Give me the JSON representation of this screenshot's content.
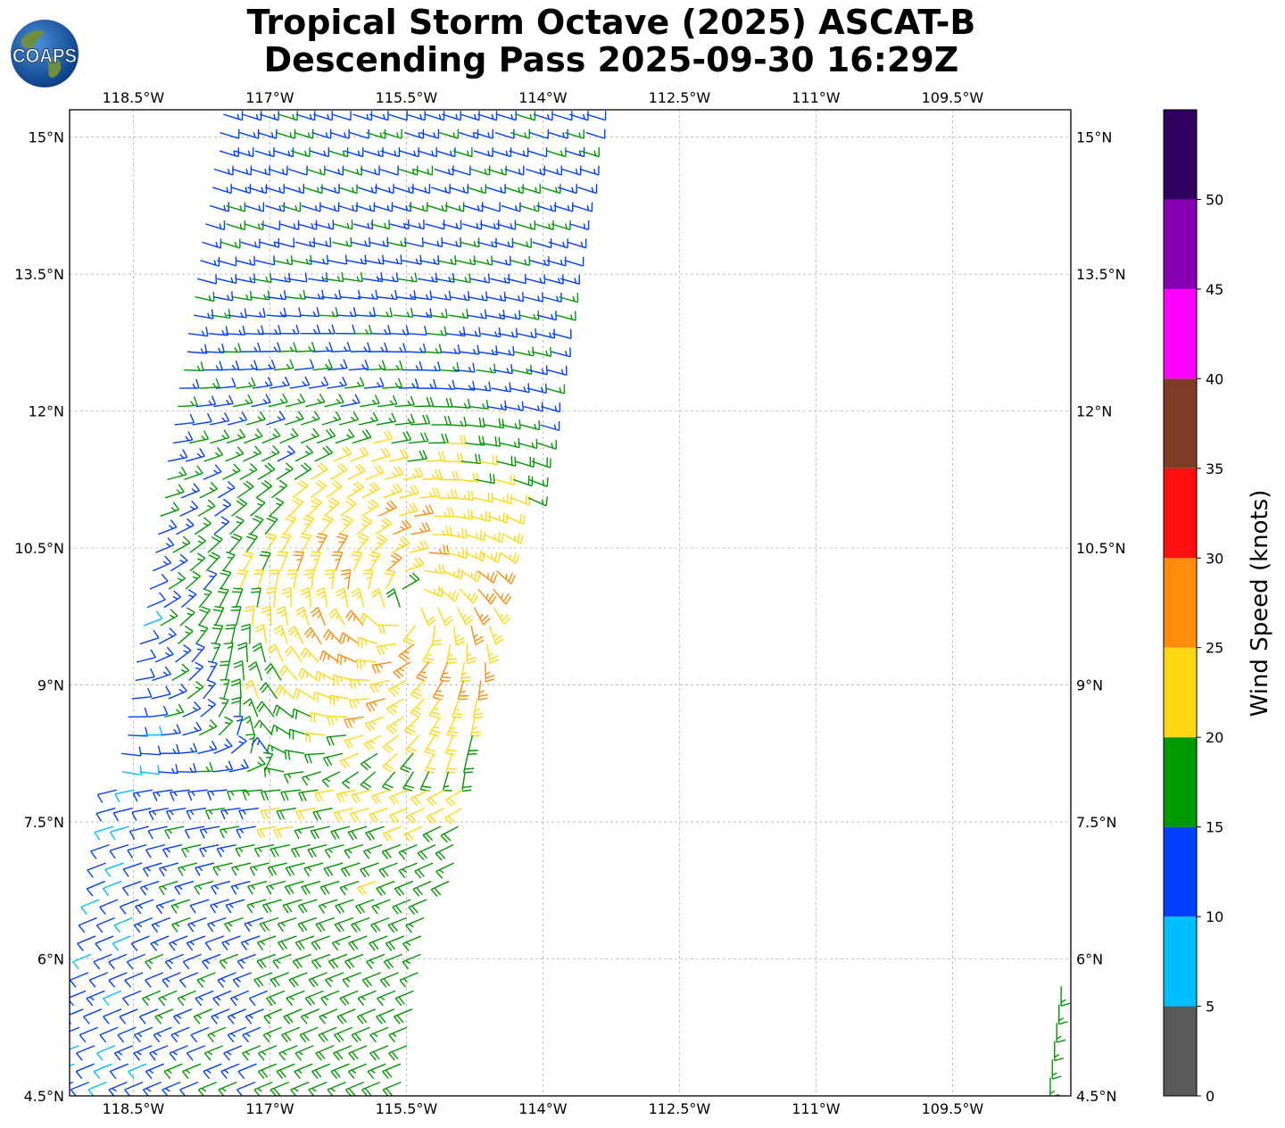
{
  "title": {
    "line1": "Tropical Storm Octave (2025) ASCAT-B",
    "line2": "Descending Pass 2025-09-30 16:29Z"
  },
  "logo": {
    "text": "COAPS",
    "icon": "globe-logo-icon"
  },
  "chart_data": {
    "type": "wind-barb map",
    "xlim": [
      -119.2,
      -108.2
    ],
    "ylim": [
      4.5,
      15.3
    ],
    "x_ticks": [
      {
        "value": -118.5,
        "label": "118.5°W"
      },
      {
        "value": -117.0,
        "label": "117°W"
      },
      {
        "value": -115.5,
        "label": "115.5°W"
      },
      {
        "value": -114.0,
        "label": "114°W"
      },
      {
        "value": -112.5,
        "label": "112.5°W"
      },
      {
        "value": -111.0,
        "label": "111°W"
      },
      {
        "value": -109.5,
        "label": "109.5°W"
      }
    ],
    "y_ticks": [
      {
        "value": 15.0,
        "label": "15°N"
      },
      {
        "value": 13.5,
        "label": "13.5°N"
      },
      {
        "value": 12.0,
        "label": "12°N"
      },
      {
        "value": 10.5,
        "label": "10.5°N"
      },
      {
        "value": 9.0,
        "label": "9°N"
      },
      {
        "value": 7.5,
        "label": "7.5°N"
      },
      {
        "value": 6.0,
        "label": "6°N"
      },
      {
        "value": 4.5,
        "label": "4.5°N"
      }
    ],
    "grid": true,
    "storm_center": {
      "lon": -115.5,
      "lat": 9.85
    },
    "swath_edges": {
      "west_top_lon": -117.5,
      "west_bottom_lon": -119.2,
      "east_top_lon": -113.3,
      "east_bottom_lon": -115.5
    },
    "secondary_swath": {
      "east_lon": -108.2,
      "west_top_lon": -108.4,
      "lat_range": [
        4.5,
        5.8
      ]
    },
    "colorbar": {
      "label": "Wind Speed (knots)",
      "position": "right",
      "bins": [
        {
          "min": 0,
          "max": 5,
          "color": "#595959"
        },
        {
          "min": 5,
          "max": 10,
          "color": "#00bfff"
        },
        {
          "min": 10,
          "max": 15,
          "color": "#0040ff"
        },
        {
          "min": 15,
          "max": 20,
          "color": "#009900"
        },
        {
          "min": 20,
          "max": 25,
          "color": "#ffd814"
        },
        {
          "min": 25,
          "max": 30,
          "color": "#ff8c0a"
        },
        {
          "min": 30,
          "max": 35,
          "color": "#ff0f0f"
        },
        {
          "min": 35,
          "max": 40,
          "color": "#803d26"
        },
        {
          "min": 40,
          "max": 45,
          "color": "#ff00ff"
        },
        {
          "min": 45,
          "max": 50,
          "color": "#8500b3"
        },
        {
          "min": 50,
          "max": 55,
          "color": "#30005e"
        }
      ],
      "ticks": [
        {
          "value": 0,
          "label": "0"
        },
        {
          "value": 5,
          "label": "5"
        },
        {
          "value": 10,
          "label": "10"
        },
        {
          "value": 15,
          "label": "15"
        },
        {
          "value": 20,
          "label": "20"
        },
        {
          "value": 25,
          "label": "25"
        },
        {
          "value": 30,
          "label": "30"
        },
        {
          "value": 35,
          "label": "35"
        },
        {
          "value": 40,
          "label": "40"
        },
        {
          "value": 45,
          "label": "45"
        },
        {
          "value": 50,
          "label": "50"
        }
      ]
    }
  }
}
